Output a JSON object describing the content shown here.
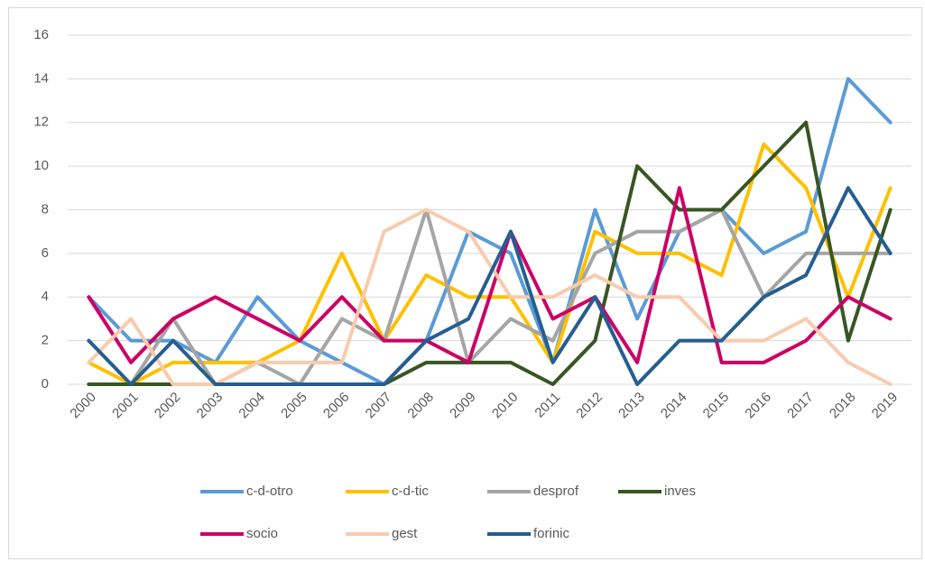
{
  "chart_data": {
    "type": "line",
    "categories": [
      "2000",
      "2001",
      "2002",
      "2003",
      "2004",
      "2005",
      "2006",
      "2007",
      "2008",
      "2009",
      "2010",
      "2011",
      "2012",
      "2013",
      "2014",
      "2015",
      "2016",
      "2017",
      "2018",
      "2019"
    ],
    "series": [
      {
        "name": "c-d-otro",
        "color": "#5b9bd5",
        "values": [
          4,
          2,
          2,
          1,
          4,
          2,
          1,
          0,
          2,
          7,
          6,
          1,
          8,
          3,
          7,
          8,
          6,
          7,
          14,
          12
        ]
      },
      {
        "name": "c-d-tic",
        "color": "#ffc000",
        "values": [
          1,
          0,
          1,
          1,
          1,
          2,
          6,
          2,
          5,
          4,
          4,
          1,
          7,
          6,
          6,
          5,
          11,
          9,
          4,
          9
        ]
      },
      {
        "name": "desprof",
        "color": "#a5a5a5",
        "values": [
          0,
          0,
          3,
          0,
          1,
          0,
          3,
          2,
          8,
          1,
          3,
          2,
          6,
          7,
          7,
          8,
          4,
          6,
          6,
          6
        ]
      },
      {
        "name": "inves",
        "color": "#375623",
        "values": [
          0,
          0,
          0,
          0,
          0,
          0,
          0,
          0,
          1,
          1,
          1,
          0,
          2,
          10,
          8,
          8,
          10,
          12,
          2,
          8
        ]
      },
      {
        "name": "socio",
        "color": "#cc0066",
        "values": [
          4,
          1,
          3,
          4,
          3,
          2,
          4,
          2,
          2,
          1,
          7,
          3,
          4,
          1,
          9,
          1,
          1,
          2,
          4,
          3
        ]
      },
      {
        "name": "gest",
        "color": "#f8cbad",
        "values": [
          1,
          3,
          0,
          0,
          1,
          1,
          1,
          7,
          8,
          7,
          4,
          4,
          5,
          4,
          4,
          2,
          2,
          3,
          1,
          0
        ]
      },
      {
        "name": "forinic",
        "color": "#255e91",
        "values": [
          2,
          0,
          2,
          0,
          0,
          0,
          0,
          0,
          2,
          3,
          7,
          1,
          4,
          0,
          2,
          2,
          4,
          5,
          9,
          6
        ]
      }
    ],
    "ylim": [
      0,
      16
    ],
    "yticks": [
      0,
      2,
      4,
      6,
      8,
      10,
      12,
      14,
      16
    ],
    "grid": true,
    "legend": "bottom"
  }
}
